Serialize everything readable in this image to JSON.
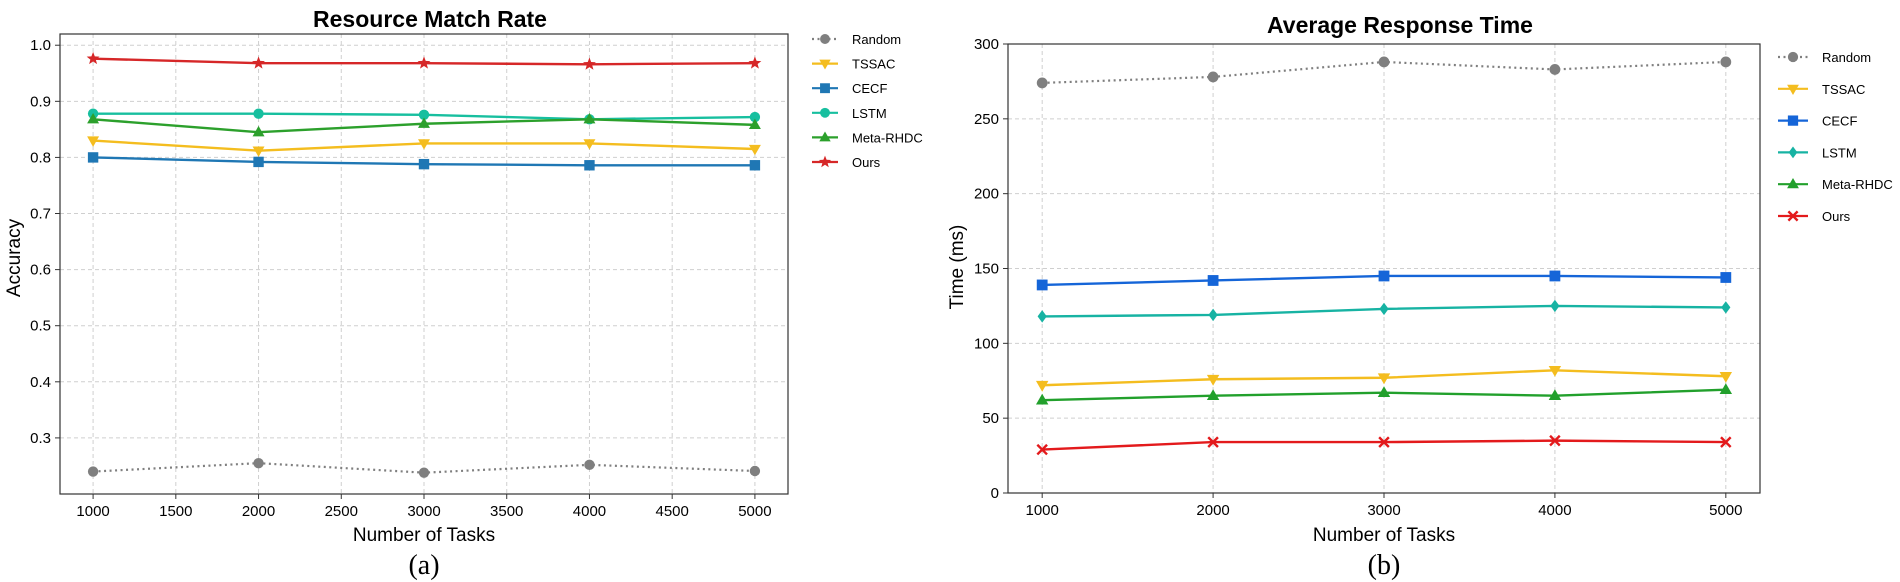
{
  "figure": {
    "captions": [
      "(a)",
      "(b)"
    ]
  },
  "chart_data": [
    {
      "type": "line",
      "title": "Resource Match Rate",
      "xlabel": "Number of Tasks",
      "ylabel": "Accuracy",
      "x_ticks": [
        1000,
        1500,
        2000,
        2500,
        3000,
        3500,
        4000,
        4500,
        5000
      ],
      "y_ticks": [
        0.3,
        0.4,
        0.5,
        0.6,
        0.7,
        0.8,
        0.9,
        1.0
      ],
      "y_tick_labels": [
        "0.3",
        "0.4",
        "0.5",
        "0.6",
        "0.7",
        "0.8",
        "0.9",
        "1.0"
      ],
      "xlim": [
        800,
        5200
      ],
      "ylim": [
        0.2,
        1.02
      ],
      "grid": true,
      "legend_position": "outside-right",
      "x": [
        1000,
        2000,
        3000,
        4000,
        5000
      ],
      "series": [
        {
          "name": "Random",
          "values": [
            0.24,
            0.255,
            0.238,
            0.252,
            0.241
          ],
          "color": "#7f7f7f",
          "marker": "circle",
          "dashed": true
        },
        {
          "name": "TSSAC",
          "values": [
            0.83,
            0.812,
            0.825,
            0.825,
            0.815
          ],
          "color": "#f4bd1f",
          "marker": "triangle-down",
          "dashed": false
        },
        {
          "name": "CECF",
          "values": [
            0.8,
            0.792,
            0.788,
            0.786,
            0.786
          ],
          "color": "#1f77b4",
          "marker": "square",
          "dashed": false
        },
        {
          "name": "LSTM",
          "values": [
            0.878,
            0.878,
            0.876,
            0.868,
            0.872
          ],
          "color": "#17bf9f",
          "marker": "circle",
          "dashed": false
        },
        {
          "name": "Meta-RHDC",
          "values": [
            0.868,
            0.845,
            0.86,
            0.868,
            0.858
          ],
          "color": "#2ca02c",
          "marker": "triangle-up",
          "dashed": false
        },
        {
          "name": "Ours",
          "values": [
            0.976,
            0.968,
            0.968,
            0.966,
            0.968
          ],
          "color": "#d62728",
          "marker": "star",
          "dashed": false
        }
      ]
    },
    {
      "type": "line",
      "title": "Average Response Time",
      "xlabel": "Number of Tasks",
      "ylabel": "Time (ms)",
      "x_ticks": [
        1000,
        2000,
        3000,
        4000,
        5000
      ],
      "y_ticks": [
        0,
        50,
        100,
        150,
        200,
        250,
        300
      ],
      "y_tick_labels": [
        "0",
        "50",
        "100",
        "150",
        "200",
        "250",
        "300"
      ],
      "xlim": [
        800,
        5200
      ],
      "ylim": [
        0,
        300
      ],
      "grid": true,
      "legend_position": "outside-right",
      "x": [
        1000,
        2000,
        3000,
        4000,
        5000
      ],
      "series": [
        {
          "name": "Random",
          "values": [
            274,
            278,
            288,
            283,
            288
          ],
          "color": "#7f7f7f",
          "marker": "circle",
          "dashed": true
        },
        {
          "name": "TSSAC",
          "values": [
            72,
            76,
            77,
            82,
            78
          ],
          "color": "#f4bd1f",
          "marker": "triangle-down",
          "dashed": false
        },
        {
          "name": "CECF",
          "values": [
            139,
            142,
            145,
            145,
            144
          ],
          "color": "#1565d8",
          "marker": "square",
          "dashed": false
        },
        {
          "name": "LSTM",
          "values": [
            118,
            119,
            123,
            125,
            124
          ],
          "color": "#17b3a3",
          "marker": "diamond",
          "dashed": false
        },
        {
          "name": "Meta-RHDC",
          "values": [
            62,
            65,
            67,
            65,
            69
          ],
          "color": "#22a02c",
          "marker": "triangle-up",
          "dashed": false
        },
        {
          "name": "Ours",
          "values": [
            29,
            34,
            34,
            35,
            34
          ],
          "color": "#e31a1c",
          "marker": "x",
          "dashed": false
        }
      ]
    }
  ]
}
